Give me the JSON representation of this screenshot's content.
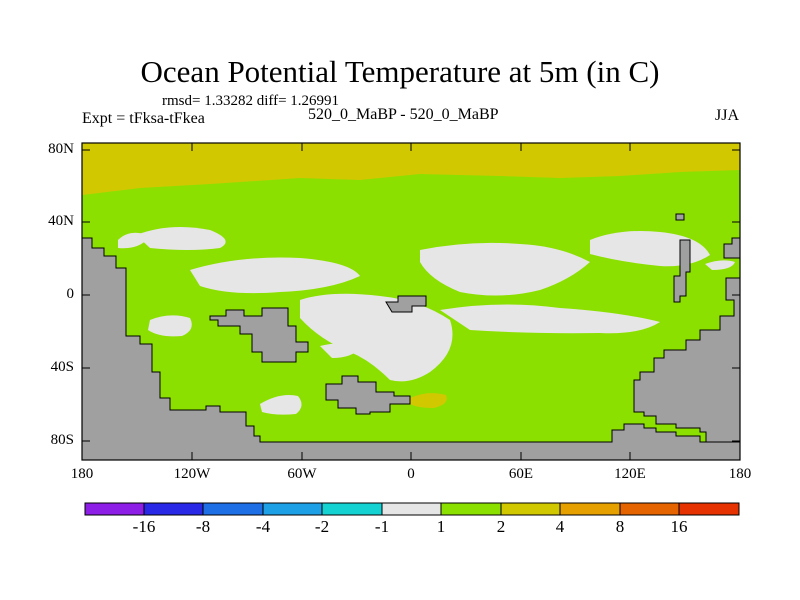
{
  "title": "Ocean Potential Temperature at 5m (in C)",
  "stats": "rmsd= 1.33282 diff= 1.26991",
  "expt_label": "Expt = tFksa-tFkea",
  "center_label": "520_0_MaBP - 520_0_MaBP",
  "season": "JJA",
  "map": {
    "lat_labels": [
      "80N",
      "40N",
      "0",
      "40S",
      "80S"
    ],
    "lon_labels": [
      "180",
      "120W",
      "60W",
      "0",
      "60E",
      "120E",
      "180"
    ],
    "land_color": "#a0a0a0",
    "colors": {
      "near_zero": "#e6e6e6",
      "one_to_two": "#8ce000",
      "two_to_four": "#d2c800"
    }
  },
  "colorbar": {
    "colors": [
      "#8c1ee6",
      "#2828e6",
      "#1e6ee6",
      "#1ea0e6",
      "#14d2d2",
      "#e6e6e6",
      "#8ce000",
      "#d2c800",
      "#e6a000",
      "#e66400",
      "#e63200"
    ],
    "labels": [
      "-16",
      "-8",
      "-4",
      "-2",
      "-1",
      "1",
      "2",
      "4",
      "8",
      "16"
    ]
  }
}
